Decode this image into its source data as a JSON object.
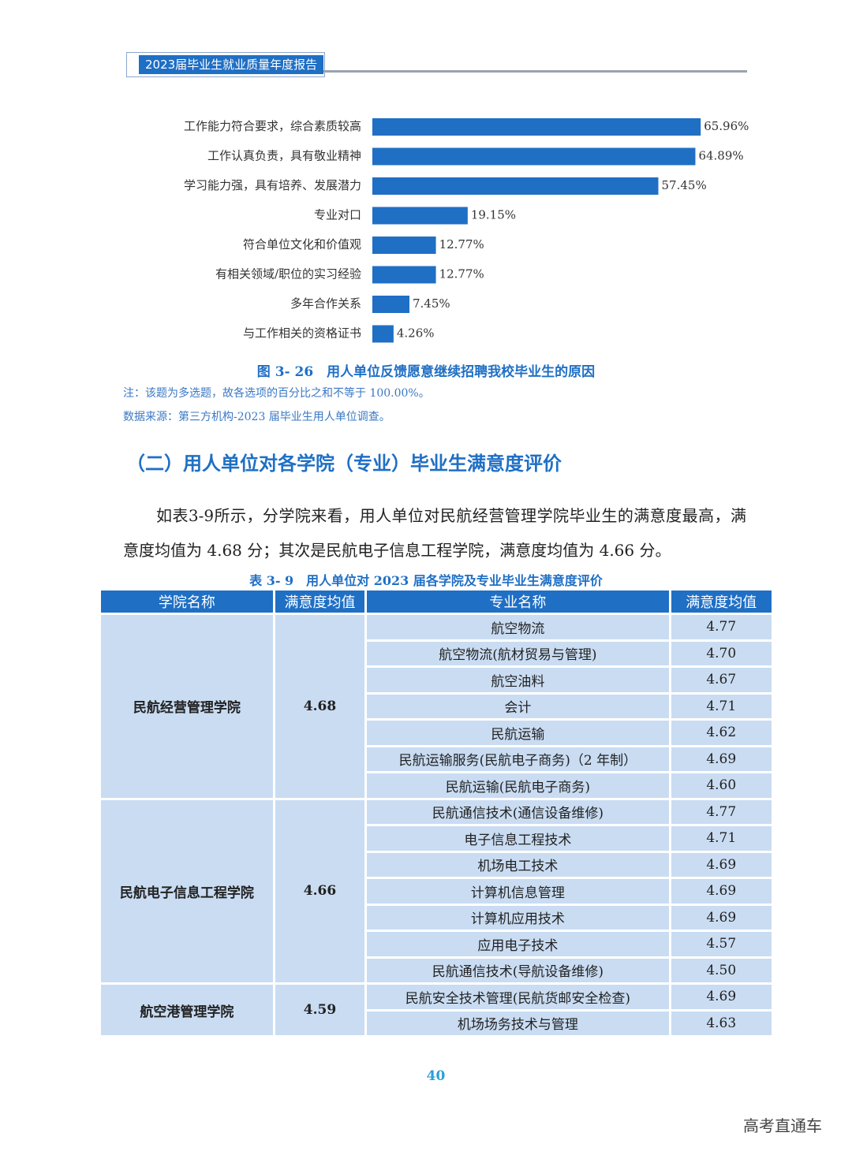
{
  "header": {
    "title": "2023届毕业生就业质量年度报告"
  },
  "chart_data": {
    "type": "bar",
    "orientation": "horizontal",
    "color": "#1f6fc5",
    "categories": [
      "工作能力符合要求，综合素质较高",
      "工作认真负责，具有敬业精神",
      "学习能力强，具有培养、发展潜力",
      "专业对口",
      "符合单位文化和价值观",
      "有相关领域/职位的实习经验",
      "多年合作关系",
      "与工作相关的资格证书"
    ],
    "values": [
      65.96,
      64.89,
      57.45,
      19.15,
      12.77,
      12.77,
      7.45,
      4.26
    ],
    "value_labels": [
      "65.96%",
      "64.89%",
      "57.45%",
      "19.15%",
      "12.77%",
      "12.77%",
      "7.45%",
      "4.26%"
    ],
    "caption": "图 3- 26　用人单位反馈愿意继续招聘我校毕业生的原因",
    "notes": [
      "注：该题为多选题，故各选项的百分比之和不等于 100.00%。",
      "数据来源：第三方机构-2023 届毕业生用人单位调查。"
    ]
  },
  "section": {
    "heading": "（二）用人单位对各学院（专业）毕业生满意度评价",
    "paragraph": "如表3-9所示，分学院来看，用人单位对民航经营管理学院毕业生的满意度最高，满意度均值为 4.68 分；其次是民航电子信息工程学院，满意度均值为 4.66 分。"
  },
  "table": {
    "title": "表 3- 9　用人单位对 2023 届各学院及专业毕业生满意度评价",
    "columns": [
      "学院名称",
      "满意度均值",
      "专业名称",
      "满意度均值"
    ],
    "groups": [
      {
        "college": "民航经营管理学院",
        "mean": "4.68",
        "majors": [
          {
            "name": "航空物流",
            "score": "4.77"
          },
          {
            "name": "航空物流(航材贸易与管理)",
            "score": "4.70"
          },
          {
            "name": "航空油料",
            "score": "4.67"
          },
          {
            "name": "会计",
            "score": "4.71"
          },
          {
            "name": "民航运输",
            "score": "4.62"
          },
          {
            "name": "民航运输服务(民航电子商务)（2 年制）",
            "score": "4.69"
          },
          {
            "name": "民航运输(民航电子商务)",
            "score": "4.60"
          }
        ]
      },
      {
        "college": "民航电子信息工程学院",
        "mean": "4.66",
        "majors": [
          {
            "name": "民航通信技术(通信设备维修)",
            "score": "4.77"
          },
          {
            "name": "电子信息工程技术",
            "score": "4.71"
          },
          {
            "name": "机场电工技术",
            "score": "4.69"
          },
          {
            "name": "计算机信息管理",
            "score": "4.69"
          },
          {
            "name": "计算机应用技术",
            "score": "4.69"
          },
          {
            "name": "应用电子技术",
            "score": "4.57"
          },
          {
            "name": "民航通信技术(导航设备维修)",
            "score": "4.50"
          }
        ]
      },
      {
        "college": "航空港管理学院",
        "mean": "4.59",
        "majors": [
          {
            "name": "民航安全技术管理(民航货邮安全检查)",
            "score": "4.69"
          },
          {
            "name": "机场场务技术与管理",
            "score": "4.63"
          }
        ]
      }
    ]
  },
  "footer": {
    "page_number": "40",
    "watermark": "高考直通车"
  }
}
